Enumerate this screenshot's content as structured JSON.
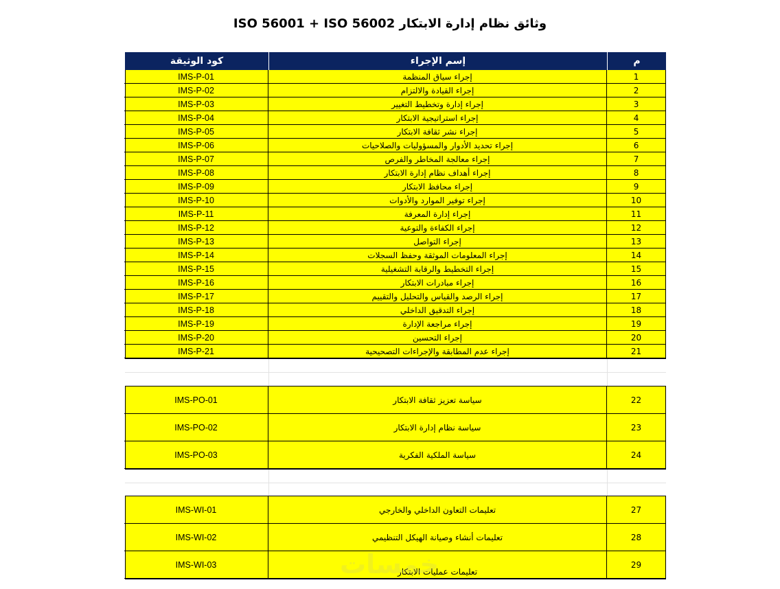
{
  "title": "وثائق نظام إدارة الابتكار  ISO 56001 + ISO 56002",
  "headers": {
    "num": "م",
    "name": "إسم الإجراء",
    "code": "كود الوثيقة"
  },
  "colors": {
    "header_bg": "#0b2460",
    "row_bg": "#ffff00"
  },
  "procedures": [
    {
      "num": "1",
      "name": "إجراء سياق المنظمة",
      "code": "IMS-P-01"
    },
    {
      "num": "2",
      "name": "إجراء القيادة والالتزام",
      "code": "IMS-P-02"
    },
    {
      "num": "3",
      "name": "إجراء إدارة وتخطيط التغيير",
      "code": "IMS-P-03"
    },
    {
      "num": "4",
      "name": "إجراء استراتيجية الابتكار",
      "code": "IMS-P-04"
    },
    {
      "num": "5",
      "name": "إجراء نشر ثقافة الابتكار",
      "code": "IMS-P-05"
    },
    {
      "num": "6",
      "name": "إجراء تحديد الأدوار والمسؤوليات والصلاحيات",
      "code": "IMS-P-06"
    },
    {
      "num": "7",
      "name": "إجراء معالجة المخاطر والفرص",
      "code": "IMS-P-07"
    },
    {
      "num": "8",
      "name": "إجراء أهداف نظام إدارة الابتكار",
      "code": "IMS-P-08"
    },
    {
      "num": "9",
      "name": "إجراء محافظ الابتكار",
      "code": "IMS-P-09"
    },
    {
      "num": "10",
      "name": "إجراء توفير الموارد والأدوات",
      "code": "IMS-P-10"
    },
    {
      "num": "11",
      "name": "إجراء إدارة المعرفة",
      "code": "IMS-P-11"
    },
    {
      "num": "12",
      "name": "إجراء الكفاءة والتوعية",
      "code": "IMS-P-12"
    },
    {
      "num": "13",
      "name": "إجراء التواصل",
      "code": "IMS-P-13"
    },
    {
      "num": "14",
      "name": "إجراء المعلومات الموثقة وحفظ السجلات",
      "code": "IMS-P-14"
    },
    {
      "num": "15",
      "name": "إجراء التخطيط والرقابة التشغيلية",
      "code": "IMS-P-15"
    },
    {
      "num": "16",
      "name": "إجراء مبادرات الابتكار",
      "code": "IMS-P-16"
    },
    {
      "num": "17",
      "name": "إجراء الرصد والقياس والتحليل والتقييم",
      "code": "IMS-P-17"
    },
    {
      "num": "18",
      "name": "إجراء التدقيق الداخلي",
      "code": "IMS-P-18"
    },
    {
      "num": "19",
      "name": "إجراء مراجعة الإدارة",
      "code": "IMS-P-19"
    },
    {
      "num": "20",
      "name": "إجراء التحسين",
      "code": "IMS-P-20"
    },
    {
      "num": "21",
      "name": "إجراء عدم المطابقة والإجراءات التصحيحية",
      "code": "IMS-P-21"
    }
  ],
  "policies": [
    {
      "num": "22",
      "name": "سياسة تعزيز ثقافة الابتكار",
      "code": "IMS-PO-01"
    },
    {
      "num": "23",
      "name": "سياسة نظام إدارة الابتكار",
      "code": "IMS-PO-02"
    },
    {
      "num": "24",
      "name": "سياسة الملكية الفكرية",
      "code": "IMS-PO-03"
    }
  ],
  "instructions": [
    {
      "num": "27",
      "name": "تعليمات  التعاون الداخلي والخارجي",
      "code": "IMS-WI-01"
    },
    {
      "num": "28",
      "name": "تعليمات أنشاء وصيانة الهيكل التنظيمي",
      "code": "IMS-WI-02"
    },
    {
      "num": "29",
      "name": "تعليمات عمليات الابتكار",
      "code": "IMS-WI-03"
    }
  ],
  "watermark": "خمسات"
}
